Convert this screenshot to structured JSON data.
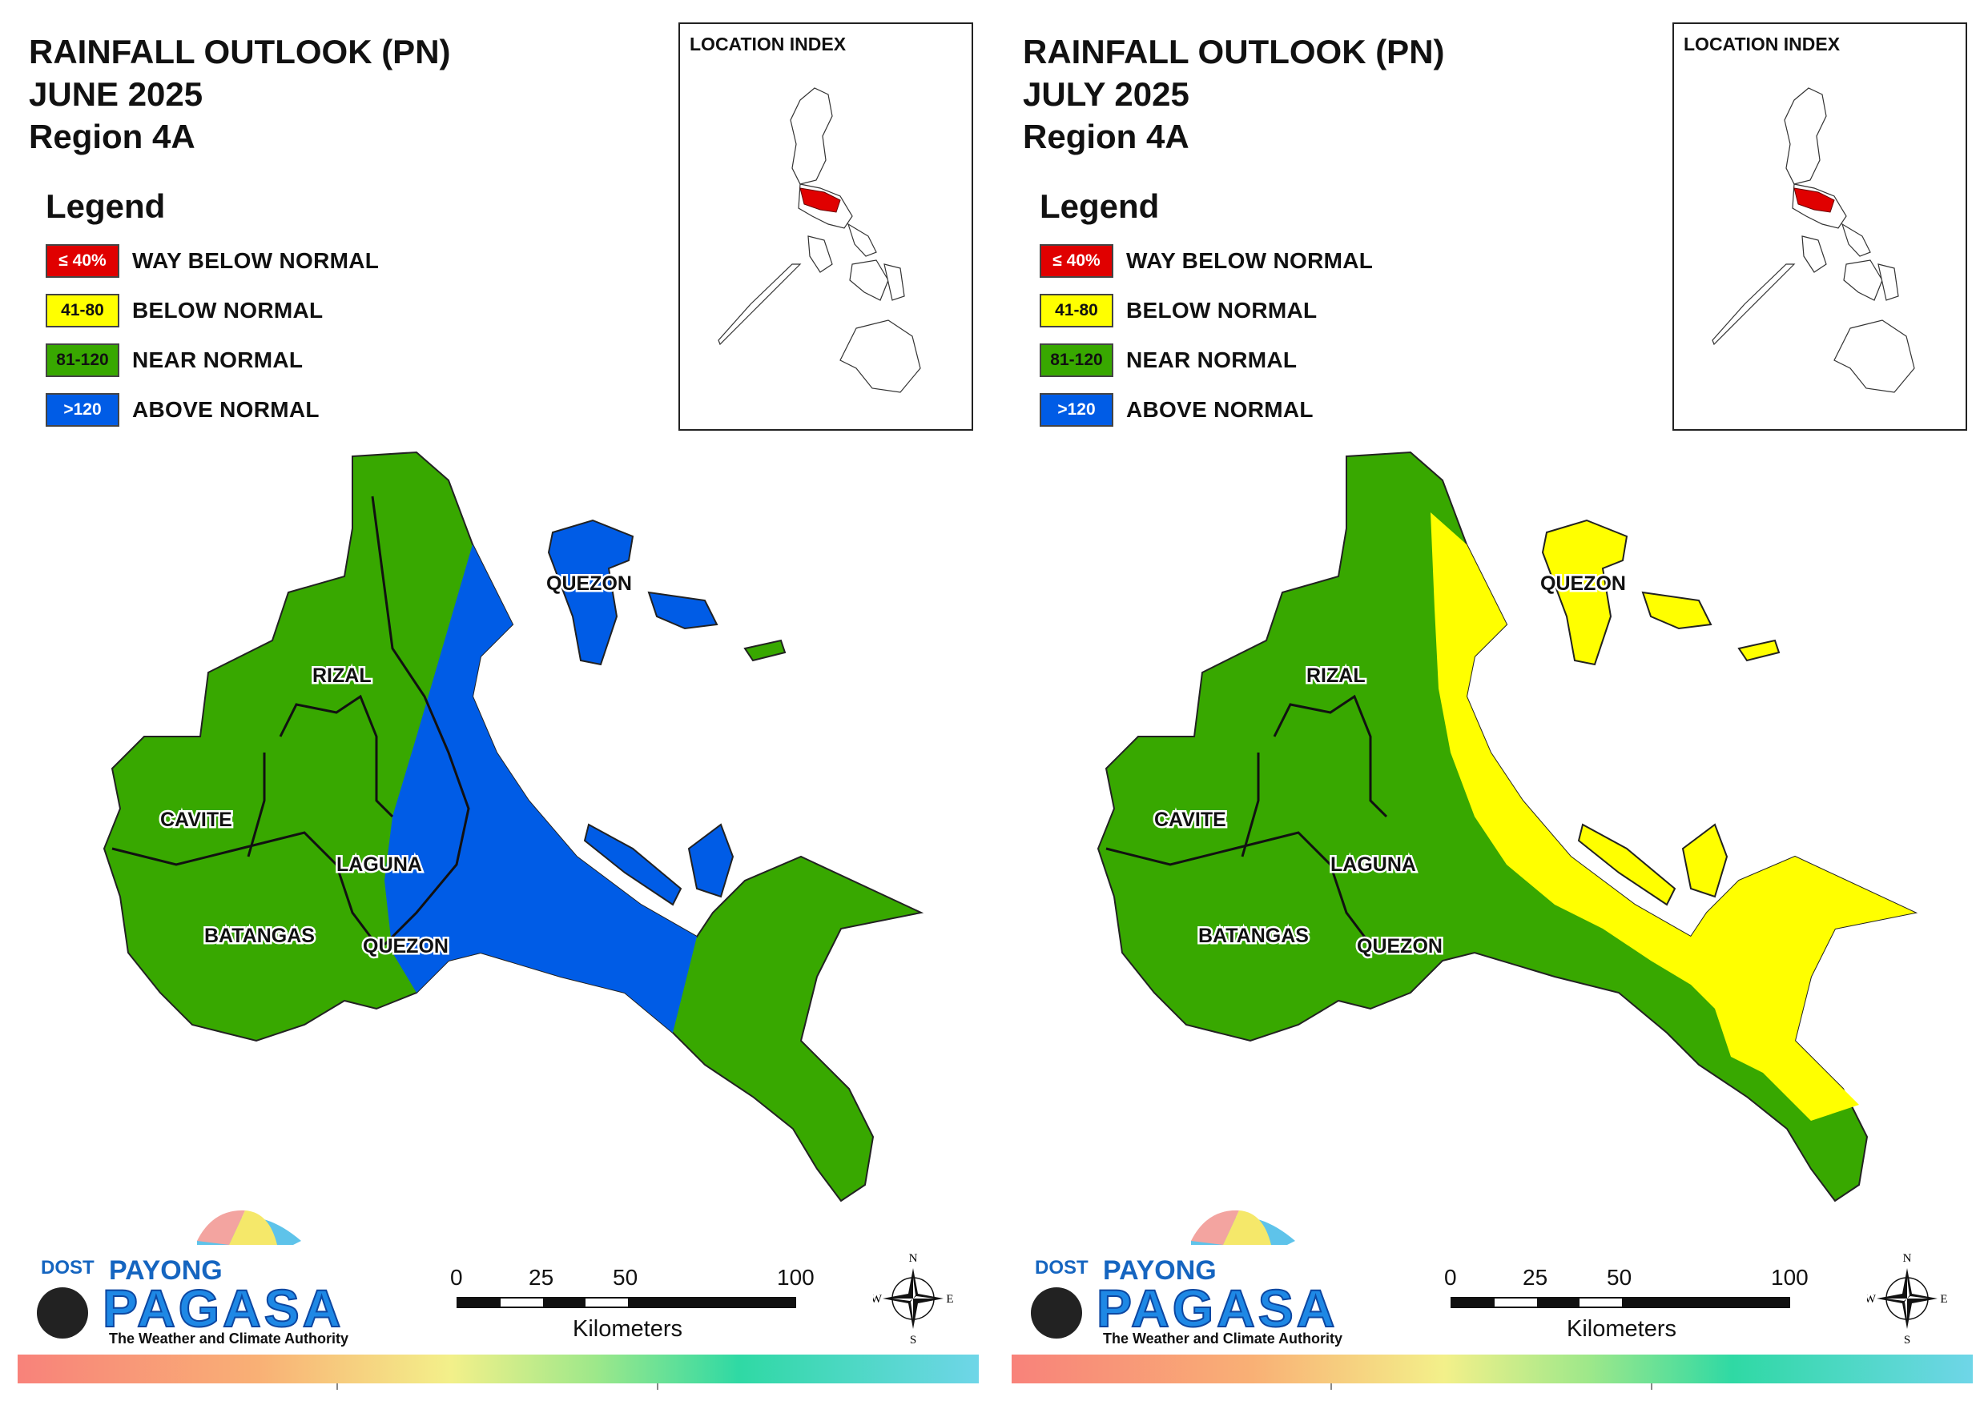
{
  "panels": [
    {
      "title_line1": "RAINFALL OUTLOOK (PN)",
      "title_line2": "JUNE 2025",
      "title_line3": "Region 4A",
      "legend_title": "Legend",
      "legend": [
        {
          "code": "≤ 40%",
          "label": "WAY BELOW NORMAL",
          "color": "#e00000",
          "text_color": "#ffffff"
        },
        {
          "code": "41-80",
          "label": "BELOW NORMAL",
          "color": "#ffff00",
          "text_color": "#111111"
        },
        {
          "code": "81-120",
          "label": "NEAR NORMAL",
          "color": "#38a800",
          "text_color": "#111111"
        },
        {
          "code": ">120",
          "label": "ABOVE NORMAL",
          "color": "#005ce6",
          "text_color": "#ffffff"
        }
      ],
      "location_index_title": "LOCATION INDEX",
      "provinces": [
        "QUEZON",
        "RIZAL",
        "CAVITE",
        "LAGUNA",
        "BATANGAS",
        "QUEZON"
      ],
      "main_fill": "#38a800",
      "east_fill": "#005ce6",
      "logo": {
        "dost": "DOST",
        "payong": "PAYONG",
        "pagasa": "PAGASA",
        "tagline": "The Weather and Climate Authority"
      },
      "scale": {
        "ticks": [
          "0",
          "25",
          "50",
          "100"
        ],
        "unit": "Kilometers"
      },
      "compass": {
        "n": "N",
        "s": "S",
        "e": "E",
        "w": "W"
      }
    },
    {
      "title_line1": "RAINFALL OUTLOOK (PN)",
      "title_line2": "JULY 2025",
      "title_line3": "Region 4A",
      "legend_title": "Legend",
      "legend": [
        {
          "code": "≤ 40%",
          "label": "WAY BELOW NORMAL",
          "color": "#e00000",
          "text_color": "#ffffff"
        },
        {
          "code": "41-80",
          "label": "BELOW NORMAL",
          "color": "#ffff00",
          "text_color": "#111111"
        },
        {
          "code": "81-120",
          "label": "NEAR NORMAL",
          "color": "#38a800",
          "text_color": "#111111"
        },
        {
          "code": ">120",
          "label": "ABOVE NORMAL",
          "color": "#005ce6",
          "text_color": "#ffffff"
        }
      ],
      "location_index_title": "LOCATION INDEX",
      "provinces": [
        "QUEZON",
        "RIZAL",
        "CAVITE",
        "LAGUNA",
        "BATANGAS",
        "QUEZON"
      ],
      "main_fill": "#38a800",
      "east_fill": "#ffff00",
      "logo": {
        "dost": "DOST",
        "payong": "PAYONG",
        "pagasa": "PAGASA",
        "tagline": "The Weather and Climate Authority"
      },
      "scale": {
        "ticks": [
          "0",
          "25",
          "50",
          "100"
        ],
        "unit": "Kilometers"
      },
      "compass": {
        "n": "N",
        "s": "S",
        "e": "E",
        "w": "W"
      }
    }
  ]
}
